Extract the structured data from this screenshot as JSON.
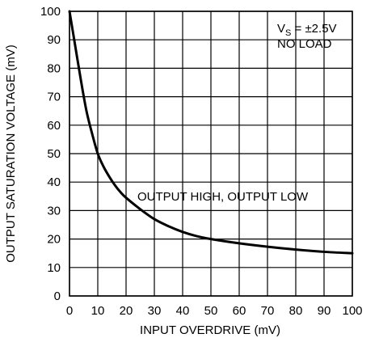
{
  "chart_data": {
    "type": "line",
    "title": "",
    "xlabel": "INPUT OVERDRIVE (mV)",
    "ylabel": "OUTPUT SATURATION VOLTAGE (mV)",
    "xlim": [
      0,
      100
    ],
    "ylim": [
      0,
      100
    ],
    "x_ticks": [
      "0",
      "10",
      "20",
      "30",
      "40",
      "50",
      "60",
      "70",
      "80",
      "90",
      "100"
    ],
    "y_ticks": [
      "0",
      "10",
      "20",
      "30",
      "40",
      "50",
      "60",
      "70",
      "80",
      "90",
      "100"
    ],
    "grid": true,
    "colors": {
      "line": "#000000",
      "grid": "#000000",
      "background": "#ffffff"
    },
    "series": [
      {
        "name": "OUTPUT HIGH, OUTPUT LOW",
        "x": [
          0,
          2,
          4,
          6,
          8,
          10,
          12,
          14,
          16,
          18,
          20,
          25,
          30,
          35,
          40,
          45,
          50,
          60,
          70,
          80,
          90,
          100
        ],
        "y": [
          100,
          88,
          76,
          65,
          57,
          50,
          45.5,
          42,
          39,
          36.5,
          34.5,
          30.5,
          27,
          24.5,
          22.5,
          21,
          20,
          18.5,
          17.3,
          16.3,
          15.5,
          15
        ]
      }
    ],
    "annotations": {
      "vs_main": "V",
      "vs_sub": "S",
      "vs_value": " = ±2.5V",
      "load": "NO LOAD",
      "curve_label": "OUTPUT HIGH, OUTPUT LOW"
    }
  }
}
